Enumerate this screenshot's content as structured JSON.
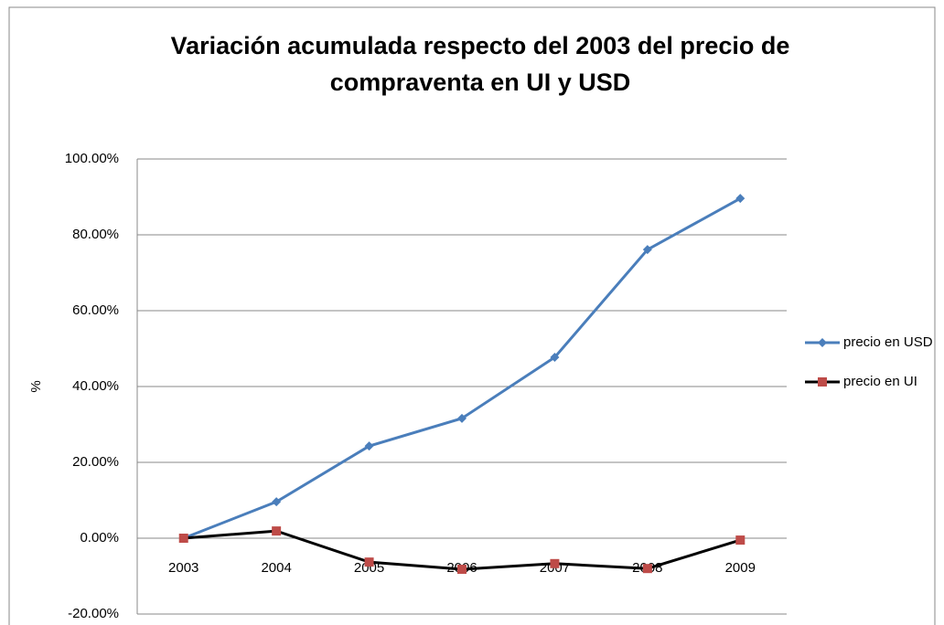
{
  "chart_data": {
    "type": "line",
    "title": [
      "Variación  acumulada respecto del 2003 del precio de",
      "compraventa en UI y USD"
    ],
    "y_label": "%",
    "categories": [
      "2003",
      "2004",
      "2005",
      "2006",
      "2007",
      "2008",
      "2009"
    ],
    "series": [
      {
        "name": "precio en USD",
        "color": "#4a7ebb",
        "marker": "diamond",
        "values": [
          0,
          9.6,
          24.3,
          31.6,
          47.7,
          76.1,
          89.6
        ]
      },
      {
        "name": "precio en UI",
        "color": "#000000",
        "marker_color": "#be4b48",
        "marker": "square",
        "values": [
          0,
          1.9,
          -6.3,
          -8.2,
          -6.7,
          -8.0,
          -0.5
        ]
      }
    ],
    "ylim": [
      -20,
      100
    ],
    "yticks": [
      {
        "value": -20,
        "label": "-20.00%"
      },
      {
        "value": 0,
        "label": "0.00%"
      },
      {
        "value": 20,
        "label": "20.00%"
      },
      {
        "value": 40,
        "label": "40.00%"
      },
      {
        "value": 60,
        "label": "60.00%"
      },
      {
        "value": 80,
        "label": "80.00%"
      },
      {
        "value": 100,
        "label": "100.00%"
      }
    ],
    "grid": true,
    "legend": "right"
  }
}
